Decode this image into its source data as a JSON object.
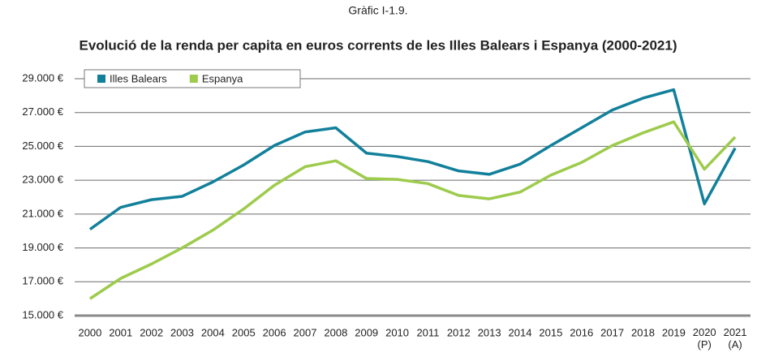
{
  "chart_data": {
    "type": "line",
    "title": "Gràfic I-1.9.",
    "subtitle": "Evolució de la renda per capita en euros corrents de les Illes Balears i Espanya (2000-2021)",
    "categories": [
      "2000",
      "2001",
      "2002",
      "2003",
      "2004",
      "2005",
      "2006",
      "2007",
      "2008",
      "2009",
      "2010",
      "2011",
      "2012",
      "2013",
      "2014",
      "2015",
      "2016",
      "2017",
      "2018",
      "2019",
      "2020 (P)",
      "2021 (A)"
    ],
    "series": [
      {
        "name": "Illes Balears",
        "color": "#12809b",
        "values": [
          20100,
          21400,
          21850,
          22050,
          22900,
          23900,
          25050,
          25850,
          26100,
          24600,
          24400,
          24100,
          23550,
          23350,
          23950,
          25050,
          26100,
          27150,
          27850,
          28350,
          21600,
          24900
        ]
      },
      {
        "name": "Espanya",
        "color": "#9dcb4c",
        "values": [
          16000,
          17200,
          18050,
          19000,
          20050,
          21300,
          22700,
          23800,
          24150,
          23100,
          23050,
          22800,
          22100,
          21900,
          22300,
          23300,
          24050,
          25050,
          25800,
          26450,
          23650,
          25550
        ]
      }
    ],
    "ylim": [
      15000,
      29000
    ],
    "yticks": [
      {
        "value": 15000,
        "label": "15.000 €"
      },
      {
        "value": 17000,
        "label": "17.000 €"
      },
      {
        "value": 19000,
        "label": "19.000 €"
      },
      {
        "value": 21000,
        "label": "21.000 €"
      },
      {
        "value": 23000,
        "label": "23.000 €"
      },
      {
        "value": 25000,
        "label": "25.000 €"
      },
      {
        "value": 27000,
        "label": "27.000 €"
      },
      {
        "value": 29000,
        "label": "29.000 €"
      }
    ],
    "grid": true,
    "legend": "top-left"
  }
}
